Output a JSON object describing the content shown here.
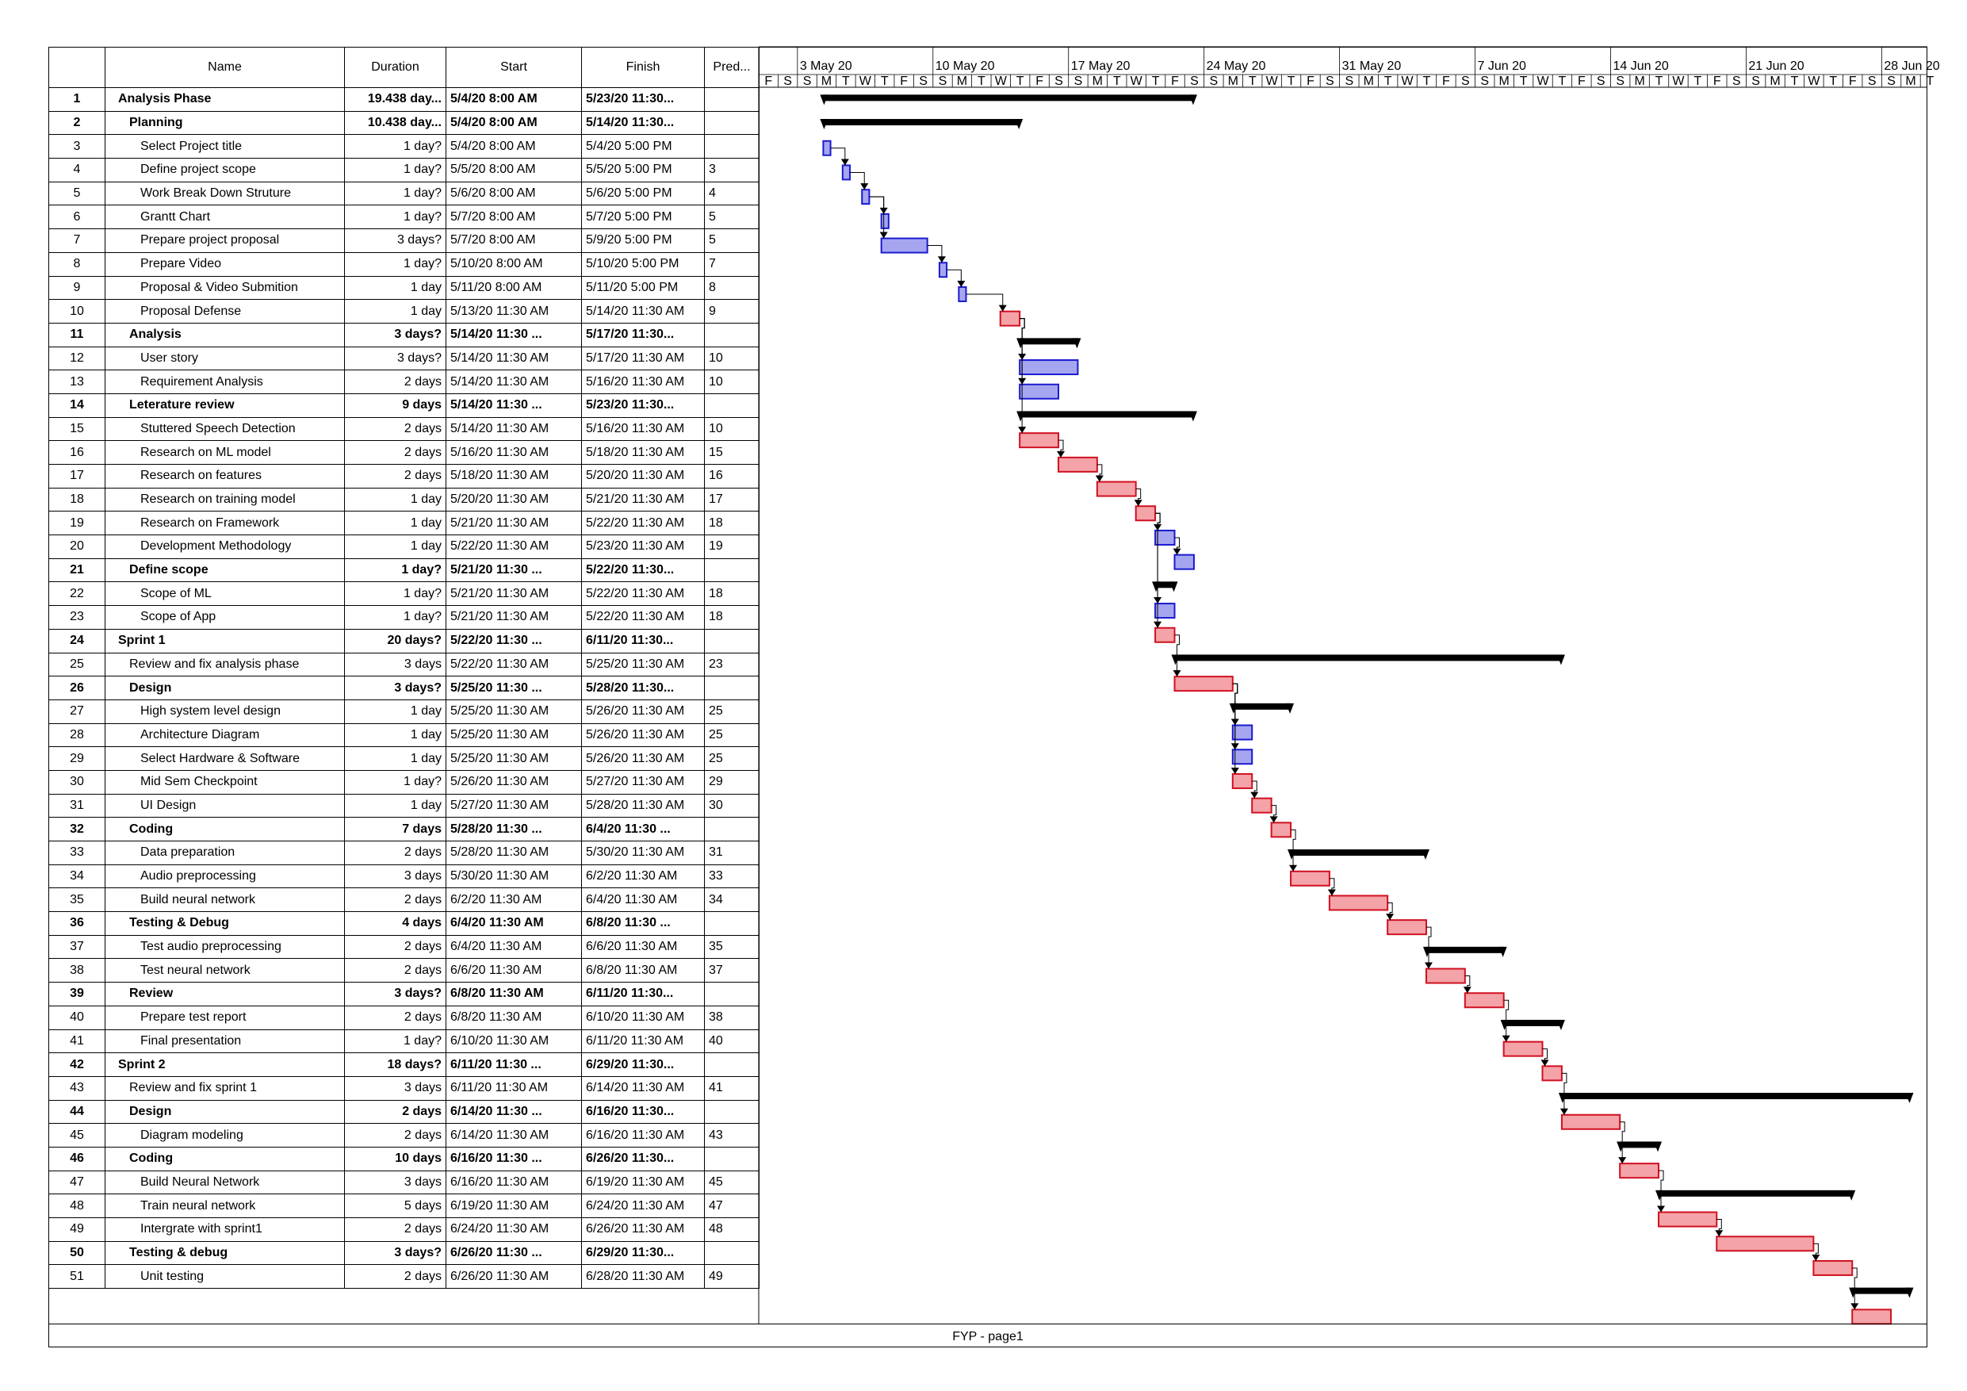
{
  "table": {
    "headers": {
      "name": "Name",
      "duration": "Duration",
      "start": "Start",
      "finish": "Finish",
      "pred": "Pred..."
    }
  },
  "timescale": {
    "weeks": [
      "3 May 20",
      "10 May 20",
      "17 May 20",
      "24 May 20",
      "31 May 20",
      "7 Jun 20",
      "14 Jun 20",
      "21 Jun 20",
      "28 Jun 20"
    ],
    "day_letters": [
      "S",
      "M",
      "T",
      "W",
      "T",
      "F",
      "S"
    ],
    "first_visible_day": "2020-05-01",
    "last_visible_day": "2020-06-30"
  },
  "colors": {
    "summary_bar": "#000000",
    "critical_fill": "#f4a3a8",
    "critical_border": "#d01020",
    "normal_fill": "#a6a6f0",
    "normal_border": "#1a1ad0",
    "link": "#000000"
  },
  "tasks": [
    {
      "id": "1",
      "name": "Analysis Phase",
      "level": 0,
      "summary": true,
      "duration": "19.438 day...",
      "start": "5/4/20 8:00 AM",
      "finish": "5/23/20 11:30...",
      "pred": "",
      "s": "2020-05-04T08:00",
      "f": "2020-05-23T11:30"
    },
    {
      "id": "2",
      "name": "Planning",
      "level": 1,
      "summary": true,
      "duration": "10.438 day...",
      "start": "5/4/20 8:00 AM",
      "finish": "5/14/20 11:30...",
      "pred": "",
      "s": "2020-05-04T08:00",
      "f": "2020-05-14T11:30"
    },
    {
      "id": "3",
      "name": "Select Project title",
      "level": 2,
      "summary": false,
      "critical": false,
      "duration": "1 day?",
      "start": "5/4/20 8:00 AM",
      "finish": "5/4/20 5:00 PM",
      "pred": "",
      "s": "2020-05-04T08:00",
      "f": "2020-05-04T17:00"
    },
    {
      "id": "4",
      "name": "Define project scope",
      "level": 2,
      "summary": false,
      "critical": false,
      "duration": "1 day?",
      "start": "5/5/20 8:00 AM",
      "finish": "5/5/20 5:00 PM",
      "pred": "3",
      "s": "2020-05-05T08:00",
      "f": "2020-05-05T17:00"
    },
    {
      "id": "5",
      "name": "Work Break Down Struture",
      "level": 2,
      "summary": false,
      "critical": false,
      "duration": "1 day?",
      "start": "5/6/20 8:00 AM",
      "finish": "5/6/20 5:00 PM",
      "pred": "4",
      "s": "2020-05-06T08:00",
      "f": "2020-05-06T17:00"
    },
    {
      "id": "6",
      "name": "Grantt Chart",
      "level": 2,
      "summary": false,
      "critical": false,
      "duration": "1 day?",
      "start": "5/7/20 8:00 AM",
      "finish": "5/7/20 5:00 PM",
      "pred": "5",
      "s": "2020-05-07T08:00",
      "f": "2020-05-07T17:00"
    },
    {
      "id": "7",
      "name": "Prepare project proposal",
      "level": 2,
      "summary": false,
      "critical": false,
      "duration": "3 days?",
      "start": "5/7/20 8:00 AM",
      "finish": "5/9/20 5:00 PM",
      "pred": "5",
      "s": "2020-05-07T08:00",
      "f": "2020-05-09T17:00"
    },
    {
      "id": "8",
      "name": "Prepare Video",
      "level": 2,
      "summary": false,
      "critical": false,
      "duration": "1 day?",
      "start": "5/10/20 8:00 AM",
      "finish": "5/10/20 5:00 PM",
      "pred": "7",
      "s": "2020-05-10T08:00",
      "f": "2020-05-10T17:00"
    },
    {
      "id": "9",
      "name": "Proposal & Video Submition",
      "level": 2,
      "summary": false,
      "critical": false,
      "duration": "1 day",
      "start": "5/11/20 8:00 AM",
      "finish": "5/11/20 5:00 PM",
      "pred": "8",
      "s": "2020-05-11T08:00",
      "f": "2020-05-11T17:00"
    },
    {
      "id": "10",
      "name": "Proposal Defense",
      "level": 2,
      "summary": false,
      "critical": true,
      "duration": "1 day",
      "start": "5/13/20 11:30 AM",
      "finish": "5/14/20 11:30 AM",
      "pred": "9",
      "s": "2020-05-13T11:30",
      "f": "2020-05-14T11:30"
    },
    {
      "id": "11",
      "name": "Analysis",
      "level": 1,
      "summary": true,
      "duration": "3 days?",
      "start": "5/14/20 11:30 ...",
      "finish": "5/17/20 11:30...",
      "pred": "",
      "s": "2020-05-14T11:30",
      "f": "2020-05-17T11:30"
    },
    {
      "id": "12",
      "name": "User story",
      "level": 2,
      "summary": false,
      "critical": false,
      "duration": "3 days?",
      "start": "5/14/20 11:30 AM",
      "finish": "5/17/20 11:30 AM",
      "pred": "10",
      "s": "2020-05-14T11:30",
      "f": "2020-05-17T11:30"
    },
    {
      "id": "13",
      "name": "Requirement Analysis",
      "level": 2,
      "summary": false,
      "critical": false,
      "duration": "2 days",
      "start": "5/14/20 11:30 AM",
      "finish": "5/16/20 11:30 AM",
      "pred": "10",
      "s": "2020-05-14T11:30",
      "f": "2020-05-16T11:30"
    },
    {
      "id": "14",
      "name": "Leterature review",
      "level": 1,
      "summary": true,
      "duration": "9 days",
      "start": "5/14/20 11:30 ...",
      "finish": "5/23/20 11:30...",
      "pred": "",
      "s": "2020-05-14T11:30",
      "f": "2020-05-23T11:30"
    },
    {
      "id": "15",
      "name": "Stuttered Speech Detection",
      "level": 2,
      "summary": false,
      "critical": true,
      "duration": "2 days",
      "start": "5/14/20 11:30 AM",
      "finish": "5/16/20 11:30 AM",
      "pred": "10",
      "s": "2020-05-14T11:30",
      "f": "2020-05-16T11:30"
    },
    {
      "id": "16",
      "name": "Research on ML model",
      "level": 2,
      "summary": false,
      "critical": true,
      "duration": "2 days",
      "start": "5/16/20 11:30 AM",
      "finish": "5/18/20 11:30 AM",
      "pred": "15",
      "s": "2020-05-16T11:30",
      "f": "2020-05-18T11:30"
    },
    {
      "id": "17",
      "name": "Research on features",
      "level": 2,
      "summary": false,
      "critical": true,
      "duration": "2 days",
      "start": "5/18/20 11:30 AM",
      "finish": "5/20/20 11:30 AM",
      "pred": "16",
      "s": "2020-05-18T11:30",
      "f": "2020-05-20T11:30"
    },
    {
      "id": "18",
      "name": "Research on training model",
      "level": 2,
      "summary": false,
      "critical": true,
      "duration": "1 day",
      "start": "5/20/20 11:30 AM",
      "finish": "5/21/20 11:30 AM",
      "pred": "17",
      "s": "2020-05-20T11:30",
      "f": "2020-05-21T11:30"
    },
    {
      "id": "19",
      "name": "Research on Framework",
      "level": 2,
      "summary": false,
      "critical": false,
      "duration": "1 day",
      "start": "5/21/20 11:30 AM",
      "finish": "5/22/20 11:30 AM",
      "pred": "18",
      "s": "2020-05-21T11:30",
      "f": "2020-05-22T11:30"
    },
    {
      "id": "20",
      "name": "Development Methodology",
      "level": 2,
      "summary": false,
      "critical": false,
      "duration": "1 day",
      "start": "5/22/20 11:30 AM",
      "finish": "5/23/20 11:30 AM",
      "pred": "19",
      "s": "2020-05-22T11:30",
      "f": "2020-05-23T11:30"
    },
    {
      "id": "21",
      "name": "Define scope",
      "level": 1,
      "summary": true,
      "duration": "1 day?",
      "start": "5/21/20 11:30 ...",
      "finish": "5/22/20 11:30...",
      "pred": "",
      "s": "2020-05-21T11:30",
      "f": "2020-05-22T11:30"
    },
    {
      "id": "22",
      "name": "Scope of ML",
      "level": 2,
      "summary": false,
      "critical": false,
      "duration": "1 day?",
      "start": "5/21/20 11:30 AM",
      "finish": "5/22/20 11:30 AM",
      "pred": "18",
      "s": "2020-05-21T11:30",
      "f": "2020-05-22T11:30"
    },
    {
      "id": "23",
      "name": "Scope of App",
      "level": 2,
      "summary": false,
      "critical": true,
      "duration": "1 day?",
      "start": "5/21/20 11:30 AM",
      "finish": "5/22/20 11:30 AM",
      "pred": "18",
      "s": "2020-05-21T11:30",
      "f": "2020-05-22T11:30"
    },
    {
      "id": "24",
      "name": "Sprint 1",
      "level": 0,
      "summary": true,
      "duration": "20 days?",
      "start": "5/22/20 11:30 ...",
      "finish": "6/11/20 11:30...",
      "pred": "",
      "s": "2020-05-22T11:30",
      "f": "2020-06-11T11:30"
    },
    {
      "id": "25",
      "name": "Review and fix analysis phase",
      "level": 1,
      "summary": false,
      "critical": true,
      "duration": "3 days",
      "start": "5/22/20 11:30 AM",
      "finish": "5/25/20 11:30 AM",
      "pred": "23",
      "s": "2020-05-22T11:30",
      "f": "2020-05-25T11:30"
    },
    {
      "id": "26",
      "name": "Design",
      "level": 1,
      "summary": true,
      "duration": "3 days?",
      "start": "5/25/20 11:30 ...",
      "finish": "5/28/20 11:30...",
      "pred": "",
      "s": "2020-05-25T11:30",
      "f": "2020-05-28T11:30"
    },
    {
      "id": "27",
      "name": "High system level design",
      "level": 2,
      "summary": false,
      "critical": false,
      "duration": "1 day",
      "start": "5/25/20 11:30 AM",
      "finish": "5/26/20 11:30 AM",
      "pred": "25",
      "s": "2020-05-25T11:30",
      "f": "2020-05-26T11:30"
    },
    {
      "id": "28",
      "name": "Architecture Diagram",
      "level": 2,
      "summary": false,
      "critical": false,
      "duration": "1 day",
      "start": "5/25/20 11:30 AM",
      "finish": "5/26/20 11:30 AM",
      "pred": "25",
      "s": "2020-05-25T11:30",
      "f": "2020-05-26T11:30"
    },
    {
      "id": "29",
      "name": "Select Hardware & Software",
      "level": 2,
      "summary": false,
      "critical": true,
      "duration": "1 day",
      "start": "5/25/20 11:30 AM",
      "finish": "5/26/20 11:30 AM",
      "pred": "25",
      "s": "2020-05-25T11:30",
      "f": "2020-05-26T11:30"
    },
    {
      "id": "30",
      "name": "Mid Sem Checkpoint",
      "level": 2,
      "summary": false,
      "critical": true,
      "duration": "1 day?",
      "start": "5/26/20 11:30 AM",
      "finish": "5/27/20 11:30 AM",
      "pred": "29",
      "s": "2020-05-26T11:30",
      "f": "2020-05-27T11:30"
    },
    {
      "id": "31",
      "name": "UI Design",
      "level": 2,
      "summary": false,
      "critical": true,
      "duration": "1 day",
      "start": "5/27/20 11:30 AM",
      "finish": "5/28/20 11:30 AM",
      "pred": "30",
      "s": "2020-05-27T11:30",
      "f": "2020-05-28T11:30"
    },
    {
      "id": "32",
      "name": "Coding",
      "level": 1,
      "summary": true,
      "duration": "7 days",
      "start": "5/28/20 11:30 ...",
      "finish": "6/4/20 11:30 ...",
      "pred": "",
      "s": "2020-05-28T11:30",
      "f": "2020-06-04T11:30"
    },
    {
      "id": "33",
      "name": "Data preparation",
      "level": 2,
      "summary": false,
      "critical": true,
      "duration": "2 days",
      "start": "5/28/20 11:30 AM",
      "finish": "5/30/20 11:30 AM",
      "pred": "31",
      "s": "2020-05-28T11:30",
      "f": "2020-05-30T11:30"
    },
    {
      "id": "34",
      "name": "Audio preprocessing",
      "level": 2,
      "summary": false,
      "critical": true,
      "duration": "3 days",
      "start": "5/30/20 11:30 AM",
      "finish": "6/2/20 11:30 AM",
      "pred": "33",
      "s": "2020-05-30T11:30",
      "f": "2020-06-02T11:30"
    },
    {
      "id": "35",
      "name": "Build neural network",
      "level": 2,
      "summary": false,
      "critical": true,
      "duration": "2 days",
      "start": "6/2/20 11:30 AM",
      "finish": "6/4/20 11:30 AM",
      "pred": "34",
      "s": "2020-06-02T11:30",
      "f": "2020-06-04T11:30"
    },
    {
      "id": "36",
      "name": "Testing & Debug",
      "level": 1,
      "summary": true,
      "duration": "4 days",
      "start": "6/4/20 11:30 AM",
      "finish": "6/8/20 11:30 ...",
      "pred": "",
      "s": "2020-06-04T11:30",
      "f": "2020-06-08T11:30"
    },
    {
      "id": "37",
      "name": "Test audio preprocessing",
      "level": 2,
      "summary": false,
      "critical": true,
      "duration": "2 days",
      "start": "6/4/20 11:30 AM",
      "finish": "6/6/20 11:30 AM",
      "pred": "35",
      "s": "2020-06-04T11:30",
      "f": "2020-06-06T11:30"
    },
    {
      "id": "38",
      "name": "Test neural network",
      "level": 2,
      "summary": false,
      "critical": true,
      "duration": "2 days",
      "start": "6/6/20 11:30 AM",
      "finish": "6/8/20 11:30 AM",
      "pred": "37",
      "s": "2020-06-06T11:30",
      "f": "2020-06-08T11:30"
    },
    {
      "id": "39",
      "name": "Review",
      "level": 1,
      "summary": true,
      "duration": "3 days?",
      "start": "6/8/20 11:30 AM",
      "finish": "6/11/20 11:30...",
      "pred": "",
      "s": "2020-06-08T11:30",
      "f": "2020-06-11T11:30"
    },
    {
      "id": "40",
      "name": "Prepare test report",
      "level": 2,
      "summary": false,
      "critical": true,
      "duration": "2 days",
      "start": "6/8/20 11:30 AM",
      "finish": "6/10/20 11:30 AM",
      "pred": "38",
      "s": "2020-06-08T11:30",
      "f": "2020-06-10T11:30"
    },
    {
      "id": "41",
      "name": "Final presentation",
      "level": 2,
      "summary": false,
      "critical": true,
      "duration": "1 day?",
      "start": "6/10/20 11:30 AM",
      "finish": "6/11/20 11:30 AM",
      "pred": "40",
      "s": "2020-06-10T11:30",
      "f": "2020-06-11T11:30"
    },
    {
      "id": "42",
      "name": "Sprint 2",
      "level": 0,
      "summary": true,
      "duration": "18 days?",
      "start": "6/11/20 11:30 ...",
      "finish": "6/29/20 11:30...",
      "pred": "",
      "s": "2020-06-11T11:30",
      "f": "2020-06-29T11:30"
    },
    {
      "id": "43",
      "name": "Review and fix sprint 1",
      "level": 1,
      "summary": false,
      "critical": true,
      "duration": "3 days",
      "start": "6/11/20 11:30 AM",
      "finish": "6/14/20 11:30 AM",
      "pred": "41",
      "s": "2020-06-11T11:30",
      "f": "2020-06-14T11:30"
    },
    {
      "id": "44",
      "name": "Design",
      "level": 1,
      "summary": true,
      "duration": "2 days",
      "start": "6/14/20 11:30 ...",
      "finish": "6/16/20 11:30...",
      "pred": "",
      "s": "2020-06-14T11:30",
      "f": "2020-06-16T11:30"
    },
    {
      "id": "45",
      "name": "Diagram modeling",
      "level": 2,
      "summary": false,
      "critical": true,
      "duration": "2 days",
      "start": "6/14/20 11:30 AM",
      "finish": "6/16/20 11:30 AM",
      "pred": "43",
      "s": "2020-06-14T11:30",
      "f": "2020-06-16T11:30"
    },
    {
      "id": "46",
      "name": "Coding",
      "level": 1,
      "summary": true,
      "duration": "10 days",
      "start": "6/16/20 11:30 ...",
      "finish": "6/26/20 11:30...",
      "pred": "",
      "s": "2020-06-16T11:30",
      "f": "2020-06-26T11:30"
    },
    {
      "id": "47",
      "name": "Build Neural Network",
      "level": 2,
      "summary": false,
      "critical": true,
      "duration": "3 days",
      "start": "6/16/20 11:30 AM",
      "finish": "6/19/20 11:30 AM",
      "pred": "45",
      "s": "2020-06-16T11:30",
      "f": "2020-06-19T11:30"
    },
    {
      "id": "48",
      "name": "Train neural network",
      "level": 2,
      "summary": false,
      "critical": true,
      "duration": "5 days",
      "start": "6/19/20 11:30 AM",
      "finish": "6/24/20 11:30 AM",
      "pred": "47",
      "s": "2020-06-19T11:30",
      "f": "2020-06-24T11:30"
    },
    {
      "id": "49",
      "name": "Intergrate with sprint1",
      "level": 2,
      "summary": false,
      "critical": true,
      "duration": "2 days",
      "start": "6/24/20 11:30 AM",
      "finish": "6/26/20 11:30 AM",
      "pred": "48",
      "s": "2020-06-24T11:30",
      "f": "2020-06-26T11:30"
    },
    {
      "id": "50",
      "name": "Testing & debug",
      "level": 1,
      "summary": true,
      "duration": "3 days?",
      "start": "6/26/20 11:30 ...",
      "finish": "6/29/20 11:30...",
      "pred": "",
      "s": "2020-06-26T11:30",
      "f": "2020-06-29T11:30"
    },
    {
      "id": "51",
      "name": "Unit testing",
      "level": 2,
      "summary": false,
      "critical": true,
      "duration": "2 days",
      "start": "6/26/20 11:30 AM",
      "finish": "6/28/20 11:30 AM",
      "pred": "49",
      "s": "2020-06-26T11:30",
      "f": "2020-06-28T11:30"
    }
  ],
  "footer": {
    "text": "FYP  -  page1"
  }
}
